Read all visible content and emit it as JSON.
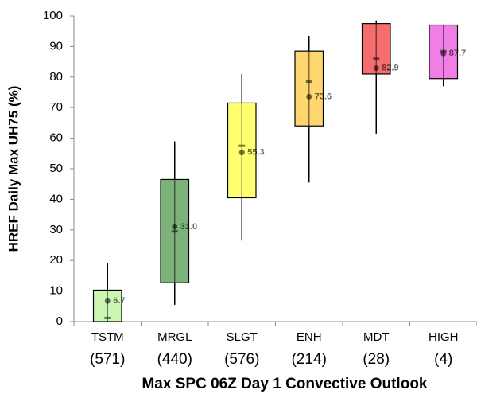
{
  "chart_data": {
    "type": "box",
    "y_label": "HREF Daily Max UH75 (%)",
    "x_label": "Max SPC 06Z Day 1 Convective Outlook",
    "categories": [
      "TSTM",
      "MRGL",
      "SLGT",
      "ENH",
      "MDT",
      "HIGH"
    ],
    "counts": [
      "(571)",
      "(440)",
      "(576)",
      "(214)",
      "(28)",
      "(4)"
    ],
    "colors": [
      "#ccf7b3",
      "#7db37a",
      "#ffff70",
      "#ffd670",
      "#f56d6d",
      "#f07ee4"
    ],
    "whisker_low": [
      0,
      5.5,
      26.5,
      45.5,
      61.5,
      77
    ],
    "q1": [
      0,
      12.7,
      40.5,
      64,
      81,
      79.5
    ],
    "median": [
      1.2,
      29.5,
      57.5,
      78.5,
      86,
      88.5
    ],
    "q3": [
      10.3,
      46.5,
      71.5,
      88.5,
      97.5,
      97
    ],
    "whisker_high": [
      19,
      59,
      81,
      93.5,
      98.5,
      97
    ],
    "mean": [
      6.7,
      31.0,
      55.3,
      73.6,
      82.9,
      87.7
    ],
    "value_labels": [
      "6.7",
      "31.0",
      "55.3",
      "73.6",
      "82.9",
      "87.7"
    ],
    "ylim": [
      0,
      100
    ],
    "yticks": [
      0,
      10,
      20,
      30,
      40,
      50,
      60,
      70,
      80,
      90,
      100
    ]
  }
}
